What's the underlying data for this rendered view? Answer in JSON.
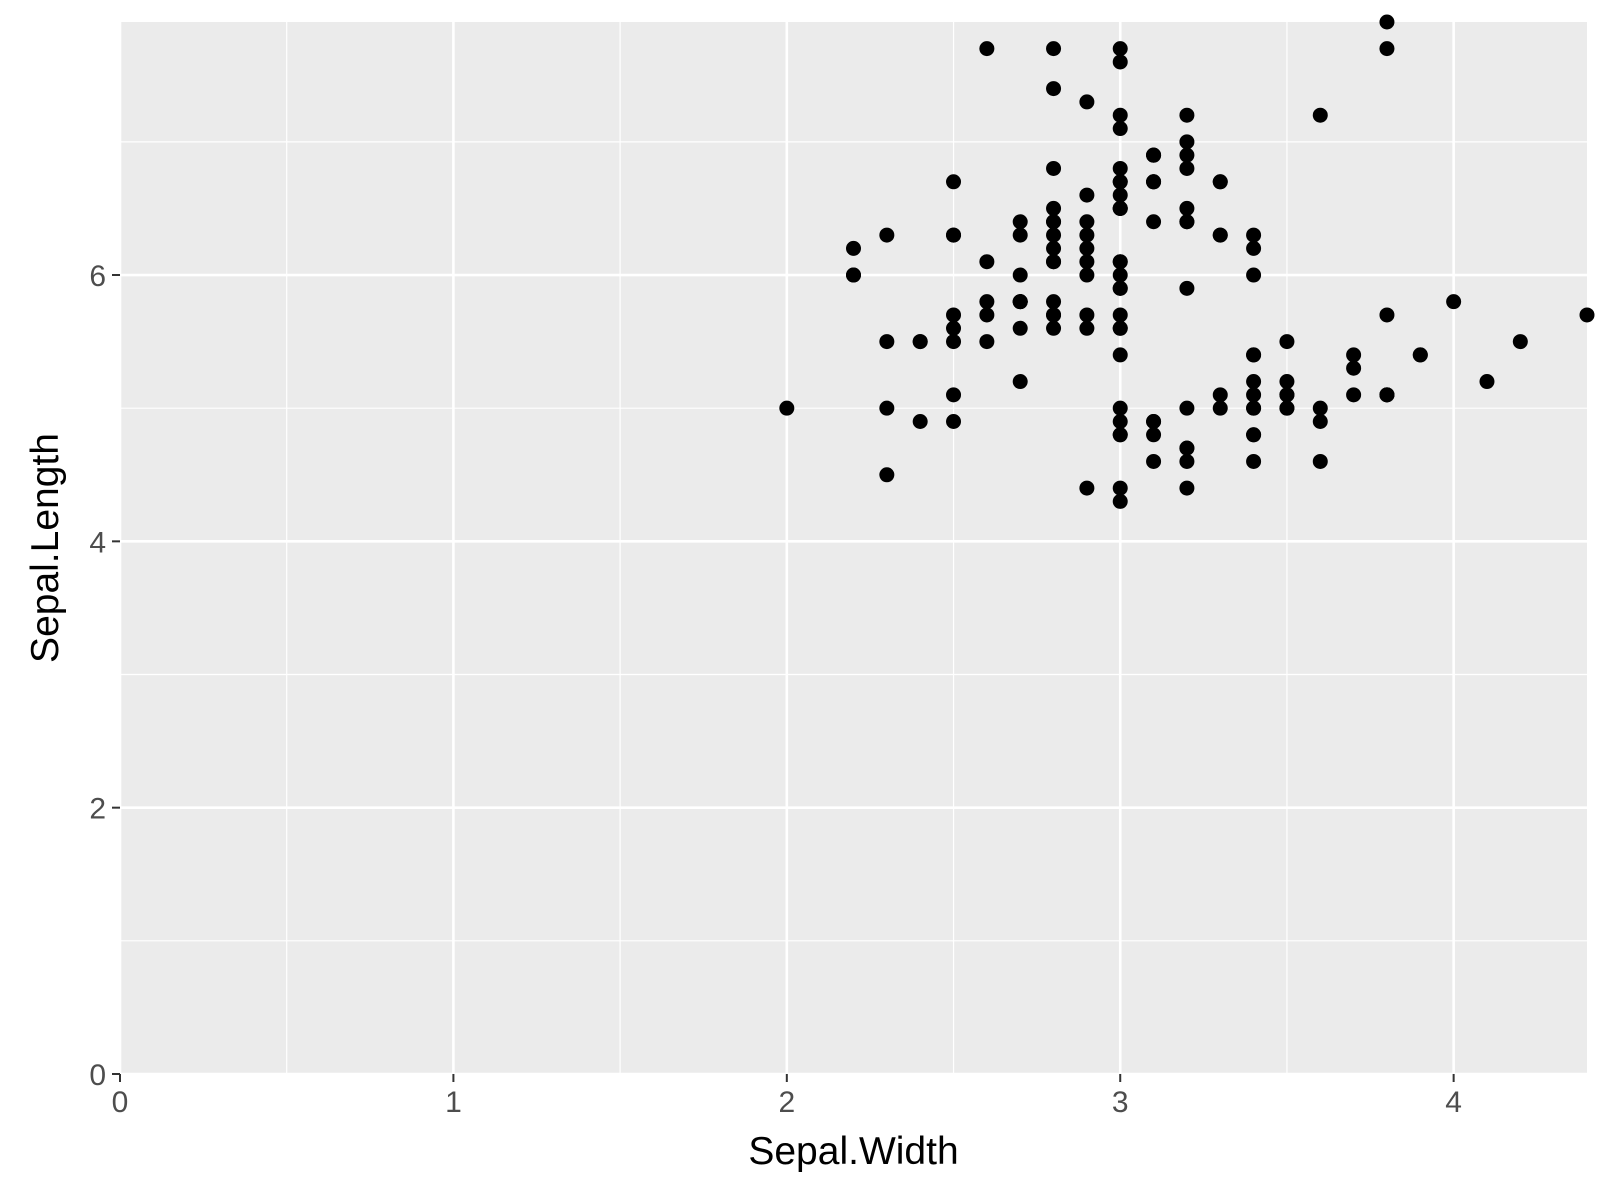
{
  "chart_data": {
    "type": "scatter",
    "title": "",
    "xlabel": "Sepal.Width",
    "ylabel": "Sepal.Length",
    "xlim": [
      0,
      4.4
    ],
    "ylim": [
      0,
      7.9
    ],
    "x_ticks": [
      0,
      1,
      2,
      3,
      4
    ],
    "y_ticks": [
      0,
      2,
      4,
      6
    ],
    "x_tick_labels": [
      "0",
      "1",
      "2",
      "3",
      "4"
    ],
    "y_tick_labels": [
      "0",
      "2",
      "4",
      "6"
    ],
    "grid": true,
    "legend": "none",
    "colors": {
      "panel": "#ebebeb",
      "grid": "#ffffff",
      "point": "#000000",
      "tick_text": "#4d4d4d",
      "axis_title": "#000000"
    },
    "points": [
      [
        3.5,
        5.1
      ],
      [
        3.0,
        4.9
      ],
      [
        3.2,
        4.7
      ],
      [
        3.1,
        4.6
      ],
      [
        3.6,
        5.0
      ],
      [
        3.9,
        5.4
      ],
      [
        3.4,
        4.6
      ],
      [
        3.4,
        5.0
      ],
      [
        2.9,
        4.4
      ],
      [
        3.1,
        4.9
      ],
      [
        3.7,
        5.4
      ],
      [
        3.4,
        4.8
      ],
      [
        3.0,
        4.8
      ],
      [
        3.0,
        4.3
      ],
      [
        4.0,
        5.8
      ],
      [
        4.4,
        5.7
      ],
      [
        3.9,
        5.4
      ],
      [
        3.5,
        5.1
      ],
      [
        3.8,
        5.7
      ],
      [
        3.8,
        5.1
      ],
      [
        3.4,
        5.4
      ],
      [
        3.7,
        5.1
      ],
      [
        3.6,
        4.6
      ],
      [
        3.3,
        5.1
      ],
      [
        3.4,
        4.8
      ],
      [
        3.0,
        5.0
      ],
      [
        3.4,
        5.0
      ],
      [
        3.5,
        5.2
      ],
      [
        3.4,
        5.2
      ],
      [
        3.2,
        4.7
      ],
      [
        3.1,
        4.8
      ],
      [
        3.4,
        5.4
      ],
      [
        4.1,
        5.2
      ],
      [
        4.2,
        5.5
      ],
      [
        3.1,
        4.9
      ],
      [
        3.2,
        5.0
      ],
      [
        3.5,
        5.5
      ],
      [
        3.6,
        4.9
      ],
      [
        3.0,
        4.4
      ],
      [
        3.4,
        5.1
      ],
      [
        3.5,
        5.0
      ],
      [
        2.3,
        4.5
      ],
      [
        3.2,
        4.4
      ],
      [
        3.5,
        5.0
      ],
      [
        3.8,
        5.1
      ],
      [
        3.0,
        4.8
      ],
      [
        3.8,
        5.1
      ],
      [
        3.2,
        4.6
      ],
      [
        3.7,
        5.3
      ],
      [
        3.3,
        5.0
      ],
      [
        3.2,
        7.0
      ],
      [
        3.2,
        6.4
      ],
      [
        3.1,
        6.9
      ],
      [
        2.3,
        5.5
      ],
      [
        2.8,
        6.5
      ],
      [
        2.8,
        5.7
      ],
      [
        3.3,
        6.3
      ],
      [
        2.4,
        4.9
      ],
      [
        2.9,
        6.6
      ],
      [
        2.7,
        5.2
      ],
      [
        2.0,
        5.0
      ],
      [
        3.0,
        5.9
      ],
      [
        2.2,
        6.0
      ],
      [
        2.9,
        6.1
      ],
      [
        2.9,
        5.6
      ],
      [
        3.1,
        6.7
      ],
      [
        3.0,
        5.6
      ],
      [
        2.7,
        5.8
      ],
      [
        2.2,
        6.2
      ],
      [
        2.5,
        5.6
      ],
      [
        3.2,
        5.9
      ],
      [
        2.8,
        6.1
      ],
      [
        2.5,
        6.3
      ],
      [
        2.8,
        6.1
      ],
      [
        2.9,
        6.4
      ],
      [
        3.0,
        6.6
      ],
      [
        2.8,
        6.8
      ],
      [
        3.0,
        6.7
      ],
      [
        2.9,
        6.0
      ],
      [
        2.6,
        5.7
      ],
      [
        2.4,
        5.5
      ],
      [
        2.4,
        5.5
      ],
      [
        2.7,
        5.8
      ],
      [
        2.7,
        6.0
      ],
      [
        3.0,
        5.4
      ],
      [
        3.4,
        6.0
      ],
      [
        3.1,
        6.7
      ],
      [
        2.3,
        6.3
      ],
      [
        3.0,
        5.6
      ],
      [
        2.5,
        5.5
      ],
      [
        2.6,
        5.5
      ],
      [
        3.0,
        6.1
      ],
      [
        2.6,
        5.8
      ],
      [
        2.3,
        5.0
      ],
      [
        2.7,
        5.6
      ],
      [
        3.0,
        5.7
      ],
      [
        2.9,
        5.7
      ],
      [
        2.9,
        6.2
      ],
      [
        2.5,
        5.1
      ],
      [
        2.8,
        5.7
      ],
      [
        3.3,
        6.3
      ],
      [
        2.7,
        5.8
      ],
      [
        3.0,
        7.1
      ],
      [
        2.9,
        6.3
      ],
      [
        3.0,
        6.5
      ],
      [
        3.0,
        7.6
      ],
      [
        2.5,
        4.9
      ],
      [
        2.9,
        7.3
      ],
      [
        2.5,
        6.7
      ],
      [
        3.6,
        7.2
      ],
      [
        3.2,
        6.5
      ],
      [
        2.7,
        6.4
      ],
      [
        3.0,
        6.8
      ],
      [
        2.5,
        5.7
      ],
      [
        2.8,
        5.8
      ],
      [
        3.2,
        6.4
      ],
      [
        3.0,
        6.5
      ],
      [
        3.8,
        7.7
      ],
      [
        2.6,
        7.7
      ],
      [
        2.2,
        6.0
      ],
      [
        3.2,
        6.9
      ],
      [
        2.8,
        5.6
      ],
      [
        2.8,
        7.7
      ],
      [
        2.7,
        6.3
      ],
      [
        3.3,
        6.7
      ],
      [
        3.2,
        7.2
      ],
      [
        2.8,
        6.2
      ],
      [
        3.0,
        6.1
      ],
      [
        2.8,
        6.4
      ],
      [
        3.0,
        7.2
      ],
      [
        2.8,
        7.4
      ],
      [
        3.8,
        7.9
      ],
      [
        2.8,
        6.4
      ],
      [
        2.8,
        6.3
      ],
      [
        2.6,
        6.1
      ],
      [
        3.0,
        7.7
      ],
      [
        3.4,
        6.3
      ],
      [
        3.1,
        6.4
      ],
      [
        3.0,
        6.0
      ],
      [
        3.1,
        6.9
      ],
      [
        3.1,
        6.7
      ],
      [
        3.1,
        6.9
      ],
      [
        2.7,
        5.8
      ],
      [
        3.2,
        6.8
      ],
      [
        3.3,
        6.7
      ],
      [
        3.0,
        6.7
      ],
      [
        2.5,
        6.3
      ],
      [
        3.0,
        6.5
      ],
      [
        3.4,
        6.2
      ],
      [
        3.0,
        5.9
      ]
    ]
  }
}
